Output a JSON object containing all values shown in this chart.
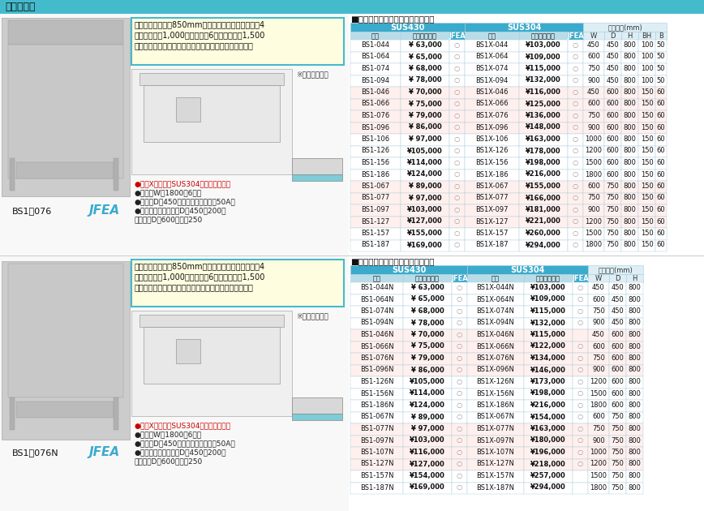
{
  "page_title": "一槽シンク",
  "bg_color": "#f5f5f5",
  "section1_title": "■一槽シンク（バックガードあり）",
  "section2_title": "■一槽シンク（バックガードなし）",
  "table1_data": [
    [
      "BS1-044",
      "¥ 63,000",
      "○",
      "BS1X-044",
      "¥103,000",
      "○",
      "450",
      "450",
      "800",
      "100",
      "50"
    ],
    [
      "BS1-064",
      "¥ 65,000",
      "○",
      "BS1X-064",
      "¥109,000",
      "○",
      "600",
      "450",
      "800",
      "100",
      "50"
    ],
    [
      "BS1-074",
      "¥ 68,000",
      "○",
      "BS1X-074",
      "¥115,000",
      "○",
      "750",
      "450",
      "800",
      "100",
      "50"
    ],
    [
      "BS1-094",
      "¥ 78,000",
      "○",
      "BS1X-094",
      "¥132,000",
      "○",
      "900",
      "450",
      "800",
      "100",
      "50"
    ],
    [
      "BS1-046",
      "¥ 70,000",
      "○",
      "BS1X-046",
      "¥116,000",
      "○",
      "450",
      "600",
      "800",
      "150",
      "60"
    ],
    [
      "BS1-066",
      "¥ 75,000",
      "○",
      "BS1X-066",
      "¥125,000",
      "○",
      "600",
      "600",
      "800",
      "150",
      "60"
    ],
    [
      "BS1-076",
      "¥ 79,000",
      "○",
      "BS1X-076",
      "¥136,000",
      "○",
      "750",
      "600",
      "800",
      "150",
      "60"
    ],
    [
      "BS1-096",
      "¥ 86,000",
      "○",
      "BS1X-096",
      "¥148,000",
      "○",
      "900",
      "600",
      "800",
      "150",
      "60"
    ],
    [
      "BS1-106",
      "¥ 97,000",
      "○",
      "BS1X-106",
      "¥163,000",
      "○",
      "1000",
      "600",
      "800",
      "150",
      "60"
    ],
    [
      "BS1-126",
      "¥105,000",
      "○",
      "BS1X-126",
      "¥178,000",
      "○",
      "1200",
      "600",
      "800",
      "150",
      "60"
    ],
    [
      "BS1-156",
      "¥114,000",
      "○",
      "BS1X-156",
      "¥198,000",
      "○",
      "1500",
      "600",
      "800",
      "150",
      "60"
    ],
    [
      "BS1-186",
      "¥124,000",
      "○",
      "BS1X-186",
      "¥216,000",
      "○",
      "1800",
      "600",
      "800",
      "150",
      "60"
    ],
    [
      "BS1-067",
      "¥ 89,000",
      "○",
      "BS1X-067",
      "¥155,000",
      "○",
      "600",
      "750",
      "800",
      "150",
      "60"
    ],
    [
      "BS1-077",
      "¥ 97,000",
      "○",
      "BS1X-077",
      "¥166,000",
      "○",
      "750",
      "750",
      "800",
      "150",
      "60"
    ],
    [
      "BS1-097",
      "¥103,000",
      "○",
      "BS1X-097",
      "¥181,000",
      "○",
      "900",
      "750",
      "800",
      "150",
      "60"
    ],
    [
      "BS1-127",
      "¥127,000",
      "○",
      "BS1X-127",
      "¥221,000",
      "○",
      "1200",
      "750",
      "800",
      "150",
      "60"
    ],
    [
      "BS1-157",
      "¥155,000",
      "○",
      "BS1X-157",
      "¥260,000",
      "○",
      "1500",
      "750",
      "800",
      "150",
      "60"
    ],
    [
      "BS1-187",
      "¥169,000",
      "○",
      "BS1X-187",
      "¥294,000",
      "○",
      "1800",
      "750",
      "800",
      "150",
      "60"
    ]
  ],
  "table2_data": [
    [
      "BS1-044N",
      "¥ 63,000",
      "○",
      "BS1X-044N",
      "¥103,000",
      "○",
      "450",
      "450",
      "800"
    ],
    [
      "BS1-064N",
      "¥ 65,000",
      "○",
      "BS1X-064N",
      "¥109,000",
      "○",
      "600",
      "450",
      "800"
    ],
    [
      "BS1-074N",
      "¥ 68,000",
      "○",
      "BS1X-074N",
      "¥115,000",
      "○",
      "750",
      "450",
      "800"
    ],
    [
      "BS1-094N",
      "¥ 78,000",
      "○",
      "BS1X-094N",
      "¥132,000",
      "○",
      "900",
      "450",
      "800"
    ],
    [
      "BS1-046N",
      "¥ 70,000",
      "○",
      "BS1X-046N",
      "¥115,000",
      "",
      "450",
      "600",
      "800"
    ],
    [
      "BS1-066N",
      "¥ 75,000",
      "○",
      "BS1X-066N",
      "¥122,000",
      "○",
      "600",
      "600",
      "800"
    ],
    [
      "BS1-076N",
      "¥ 79,000",
      "○",
      "BS1X-076N",
      "¥134,000",
      "○",
      "750",
      "600",
      "800"
    ],
    [
      "BS1-096N",
      "¥ 86,000",
      "○",
      "BS1X-096N",
      "¥146,000",
      "○",
      "900",
      "600",
      "800"
    ],
    [
      "BS1-126N",
      "¥105,000",
      "○",
      "BS1X-126N",
      "¥173,000",
      "○",
      "1200",
      "600",
      "800"
    ],
    [
      "BS1-156N",
      "¥114,000",
      "○",
      "BS1X-156N",
      "¥198,000",
      "○",
      "1500",
      "600",
      "800"
    ],
    [
      "BS1-186N",
      "¥124,000",
      "○",
      "BS1X-186N",
      "¥216,000",
      "○",
      "1800",
      "600",
      "800"
    ],
    [
      "BS1-067N",
      "¥ 89,000",
      "○",
      "BS1X-067N",
      "¥154,000",
      "○",
      "600",
      "750",
      "800"
    ],
    [
      "BS1-077N",
      "¥ 97,000",
      "○",
      "BS1X-077N",
      "¥163,000",
      "○",
      "750",
      "750",
      "800"
    ],
    [
      "BS1-097N",
      "¥103,000",
      "○",
      "BS1X-097N",
      "¥180,000",
      "○",
      "900",
      "750",
      "800"
    ],
    [
      "BS1-107N",
      "¥116,000",
      "○",
      "BS1X-107N",
      "¥196,000",
      "○",
      "1000",
      "750",
      "800"
    ],
    [
      "BS1-127N",
      "¥127,000",
      "○",
      "BS1X-127N",
      "¥218,000",
      "○",
      "1200",
      "750",
      "800"
    ],
    [
      "BS1-157N",
      "¥154,000",
      "○",
      "BS1X-157N",
      "¥257,000",
      "",
      "1500",
      "750",
      "800"
    ],
    [
      "BS1-187N",
      "¥169,000",
      "○",
      "BS1X-187N",
      "¥294,000",
      "",
      "1800",
      "750",
      "800"
    ]
  ],
  "note_text": "一槽シンクは高さ850mm仕様もございます。価格は4\n本脚の機種が1,000円アップ、6本脚の機種が1,500\n円アップとなります。詳しくはお問い合わせください。",
  "bullets1": [
    "●型式XタイプはSUS304シリーズです。",
    "●間口（W）1800は6本脚",
    "●奥行（D）450は小キングドレン（50A）",
    "●シンク深さは奥行（D）450は200、",
    "　奥行（D）600以上は250"
  ],
  "bullets2": [
    "●型式XタイプはSUS304シリーズです。",
    "●間口（W）1800は6本脚",
    "●奥行（D）450は小キングドレン（50A）",
    "●シンク深さは奥行（D）450は200、",
    "　奥行（D）600以上は250"
  ],
  "label1": "BS1－076",
  "label2": "BS1－076N",
  "jfea_color": "#3aabcc",
  "tbl_hdr_color": "#3aabcc",
  "tbl_subhdr_color": "#b8dde8",
  "row_white": "#ffffff",
  "row_pink": "#fff0ee",
  "border_color": "#aaccdd",
  "title_bar_color": "#44bbcc",
  "note_box_fill": "#fffde0",
  "note_box_border": "#44bbcc",
  "outer_hdr_fill": "#ddeef5",
  "page_bg": "#f0f0f0",
  "left_bg": "#f8f8f8",
  "divider_color": "#cccccc"
}
